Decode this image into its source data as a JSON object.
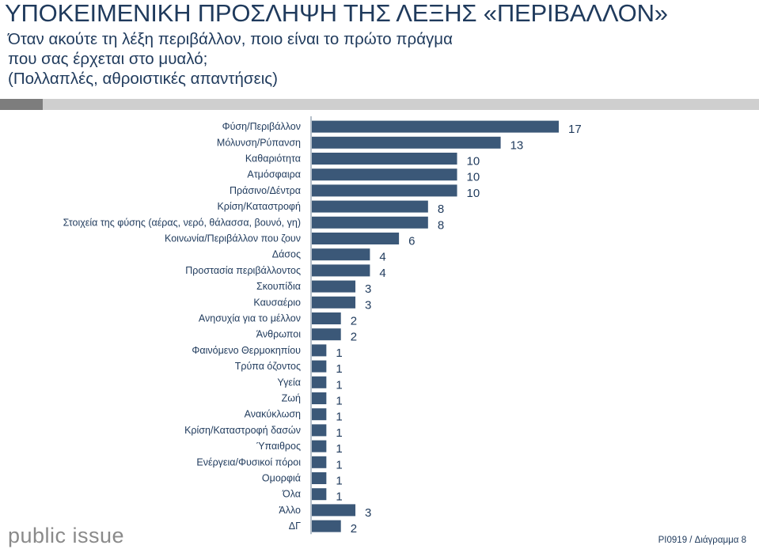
{
  "header": {
    "title": "ΥΠΟΚΕΙΜΕΝΙΚΗ ΠΡΟΣΛΗΨΗ ΤΗΣ ΛΕΞΗΣ «ΠΕΡΙΒΑΛΛΟΝ»",
    "question_line1": "Όταν ακούτε τη λέξη περιβάλλον, ποιο είναι το πρώτο πράγμα",
    "question_line2": "που σας έρχεται στο μυαλό;",
    "question_line3": "(Πολλαπλές, αθροιστικές απαντήσεις)"
  },
  "footer": {
    "logo": "public issue",
    "diagram_id": "PI0919 / Διάγραμμα 8"
  },
  "colors": {
    "bar": "#3b5878",
    "text": "#1f3a5c"
  },
  "chart_data": {
    "type": "bar",
    "orientation": "horizontal",
    "categories": [
      "Φύση/Περιβάλλον",
      "Μόλυνση/Ρύπανση",
      "Καθαριότητα",
      "Ατμόσφαιρα",
      "Πράσινο/Δέντρα",
      "Κρίση/Καταστροφή",
      "Στοιχεία της φύσης (αέρας, νερό, θάλασσα, βουνό, γη)",
      "Κοινωνία/Περιβάλλον που ζουν",
      "Δάσος",
      "Προστασία περιβάλλοντος",
      "Σκουπίδια",
      "Καυσαέριο",
      "Ανησυχία για το μέλλον",
      "Άνθρωποι",
      "Φαινόμενο Θερμοκηπίου",
      "Τρύπα όζοντος",
      "Υγεία",
      "Ζωή",
      "Ανακύκλωση",
      "Κρίση/Καταστροφή δασών",
      "Ύπαιθρος",
      "Ενέργεια/Φυσικοί πόροι",
      "Ομορφιά",
      "Όλα",
      "Άλλο",
      "ΔΓ"
    ],
    "values": [
      17,
      13,
      10,
      10,
      10,
      8,
      8,
      6,
      4,
      4,
      3,
      3,
      2,
      2,
      1,
      1,
      1,
      1,
      1,
      1,
      1,
      1,
      1,
      1,
      3,
      2
    ],
    "xlim": [
      0,
      17
    ],
    "grid": false,
    "legend": "none"
  }
}
